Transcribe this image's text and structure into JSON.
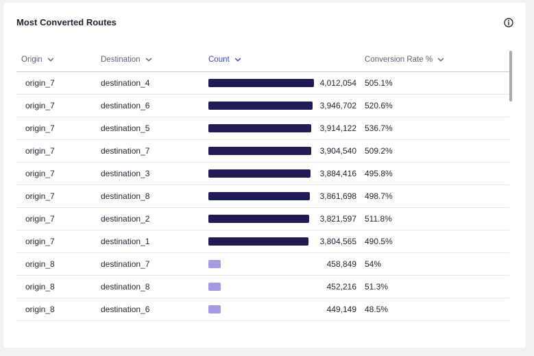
{
  "card": {
    "title": "Most Converted Routes"
  },
  "icons": {
    "info": "info-icon",
    "sort": "chevron-down-icon"
  },
  "colors": {
    "bar_high": "#1f1b54",
    "bar_low": "#a59be3",
    "active_header": "#3d3dcc"
  },
  "table": {
    "headers": {
      "origin": "Origin",
      "destination": "Destination",
      "count": "Count",
      "rate": "Conversion Rate %"
    },
    "rows": [
      {
        "origin": "origin_7",
        "destination": "destination_4",
        "count": "4,012,054",
        "count_value": 4012054,
        "rate": "505.1%"
      },
      {
        "origin": "origin_7",
        "destination": "destination_6",
        "count": "3,946,702",
        "count_value": 3946702,
        "rate": "520.6%"
      },
      {
        "origin": "origin_7",
        "destination": "destination_5",
        "count": "3,914,122",
        "count_value": 3914122,
        "rate": "536.7%"
      },
      {
        "origin": "origin_7",
        "destination": "destination_7",
        "count": "3,904,540",
        "count_value": 3904540,
        "rate": "509.2%"
      },
      {
        "origin": "origin_7",
        "destination": "destination_3",
        "count": "3,884,416",
        "count_value": 3884416,
        "rate": "495.8%"
      },
      {
        "origin": "origin_7",
        "destination": "destination_8",
        "count": "3,861,698",
        "count_value": 3861698,
        "rate": "498.7%"
      },
      {
        "origin": "origin_7",
        "destination": "destination_2",
        "count": "3,821,597",
        "count_value": 3821597,
        "rate": "511.8%"
      },
      {
        "origin": "origin_7",
        "destination": "destination_1",
        "count": "3,804,565",
        "count_value": 3804565,
        "rate": "490.5%"
      },
      {
        "origin": "origin_8",
        "destination": "destination_7",
        "count": "458,849",
        "count_value": 458849,
        "rate": "54%"
      },
      {
        "origin": "origin_8",
        "destination": "destination_8",
        "count": "452,216",
        "count_value": 452216,
        "rate": "51.3%"
      },
      {
        "origin": "origin_8",
        "destination": "destination_6",
        "count": "449,149",
        "count_value": 449149,
        "rate": "48.5%"
      }
    ]
  }
}
